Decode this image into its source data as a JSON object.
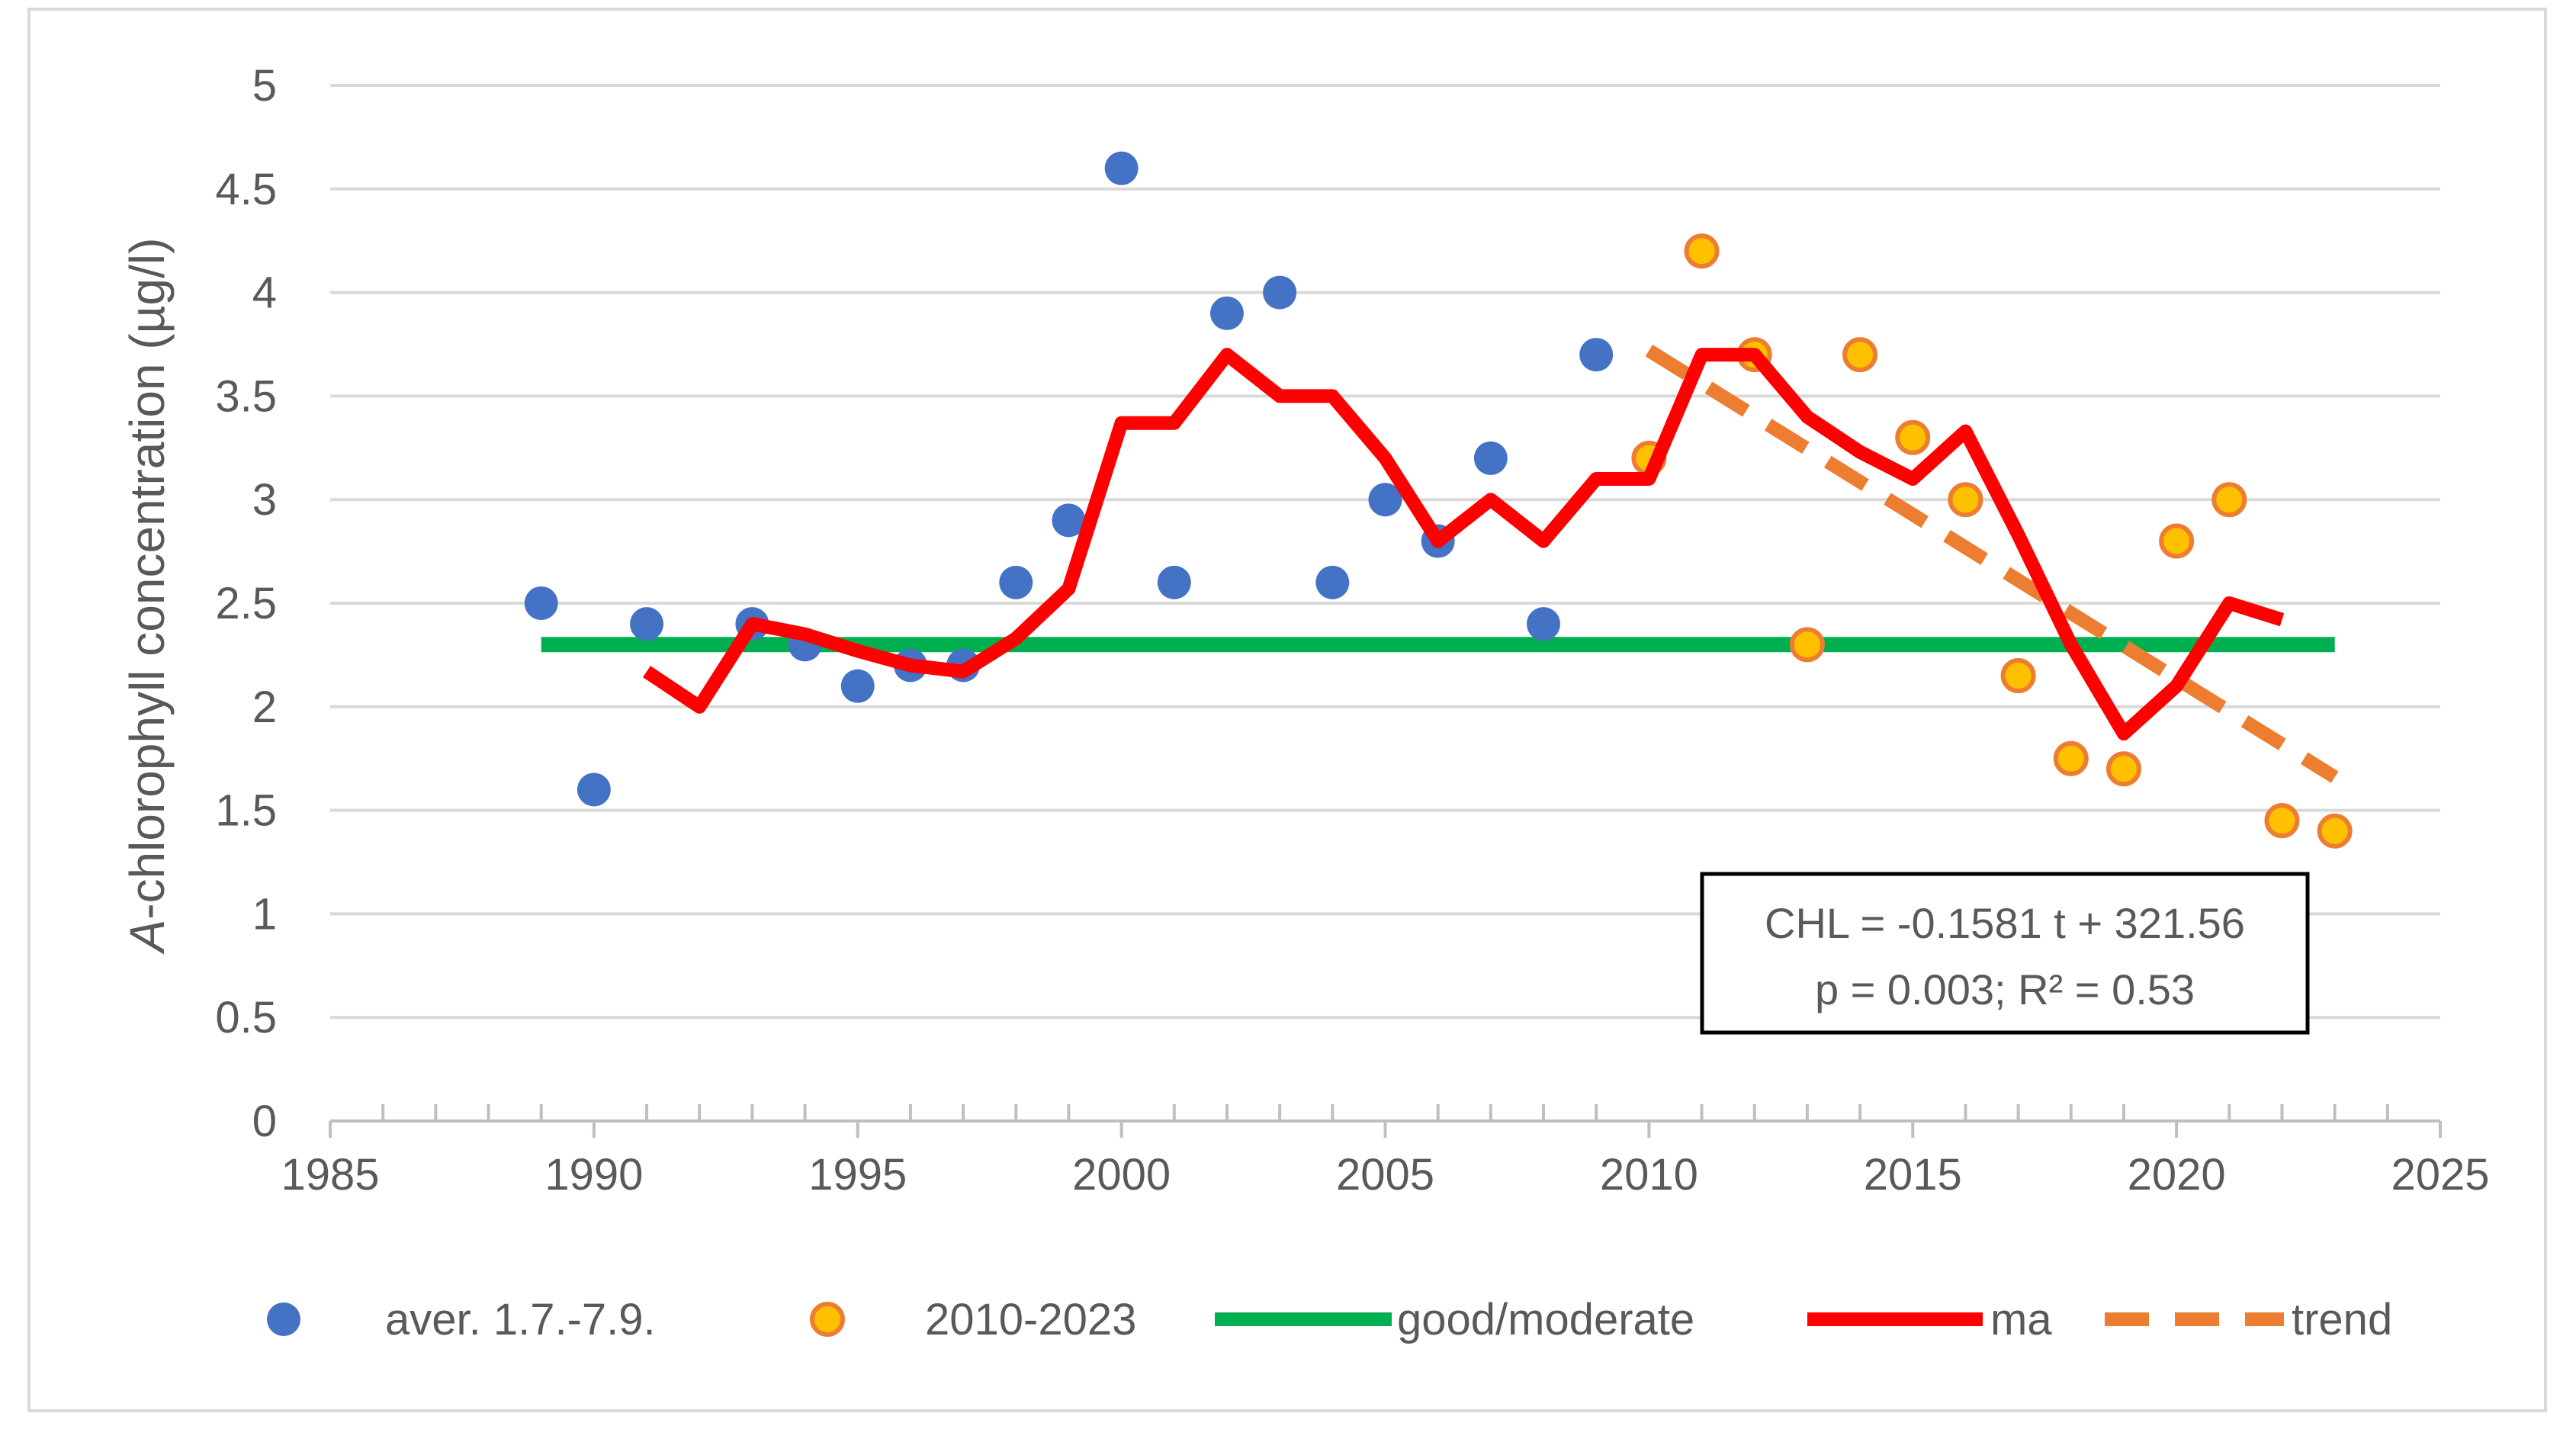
{
  "chart_data": {
    "type": "scatter",
    "title": "",
    "xlabel": "",
    "ylabel_prefix": "A",
    "ylabel": "-chlorophyll concentration (µg/l)",
    "xlim": [
      1985,
      2025
    ],
    "ylim": [
      0,
      5
    ],
    "x_ticks": [
      "1985",
      "1990",
      "1995",
      "2000",
      "2005",
      "2010",
      "2015",
      "2020",
      "2025"
    ],
    "y_ticks": [
      "0",
      "0.5",
      "1",
      "1.5",
      "2",
      "2.5",
      "3",
      "3.5",
      "4",
      "4.5",
      "5"
    ],
    "grid": "horizontal",
    "legend_position": "bottom",
    "colors": {
      "aver": "#4472c4",
      "recent_fill": "#ffc000",
      "recent_edge": "#ed7d31",
      "good_moderate": "#00b050",
      "ma": "#ff0000",
      "trend": "#ed7d31",
      "grid": "#d9d9d9",
      "axis": "#bfbfbf",
      "text": "#595959"
    },
    "series": [
      {
        "name": "aver. 1.7.-7.9.",
        "kind": "scatter",
        "x": [
          1989,
          1990,
          1991,
          1993,
          1994,
          1995,
          1996,
          1997,
          1998,
          1999,
          2000,
          2001,
          2002,
          2003,
          2004,
          2005,
          2006,
          2007,
          2008,
          2009
        ],
        "y": [
          2.5,
          1.6,
          2.4,
          2.4,
          2.3,
          2.1,
          2.2,
          2.2,
          2.6,
          2.9,
          4.6,
          2.6,
          3.9,
          4.0,
          2.6,
          3.0,
          2.8,
          3.2,
          2.4,
          3.7
        ]
      },
      {
        "name": "2010-2023",
        "kind": "scatter",
        "x": [
          2010,
          2011,
          2012,
          2013,
          2014,
          2015,
          2016,
          2017,
          2018,
          2019,
          2020,
          2021,
          2022,
          2023
        ],
        "y": [
          3.2,
          4.2,
          3.7,
          2.3,
          3.7,
          3.3,
          3.0,
          2.15,
          1.75,
          1.7,
          2.8,
          3.0,
          1.45,
          1.4
        ]
      },
      {
        "name": "good/moderate",
        "kind": "line",
        "x": [
          1989,
          2023
        ],
        "y": [
          2.3,
          2.3
        ]
      },
      {
        "name": "ma",
        "kind": "line",
        "x": [
          1991,
          1992,
          1993,
          1994,
          1995,
          1996,
          1997,
          1998,
          1999,
          2000,
          2001,
          2002,
          2003,
          2004,
          2005,
          2006,
          2007,
          2008,
          2009,
          2010,
          2011,
          2012,
          2013,
          2014,
          2015,
          2016,
          2017,
          2018,
          2019,
          2020,
          2021,
          2022
        ],
        "y": [
          2.17,
          2.0,
          2.4,
          2.35,
          2.27,
          2.2,
          2.17,
          2.33,
          2.57,
          3.37,
          3.37,
          3.7,
          3.5,
          3.5,
          3.2,
          2.8,
          3.0,
          2.8,
          3.1,
          3.1,
          3.7,
          3.7,
          3.4,
          3.23,
          3.1,
          3.33,
          2.83,
          2.3,
          1.87,
          2.1,
          2.5,
          2.42
        ]
      },
      {
        "name": "trend",
        "kind": "dashed-line",
        "x": [
          2010,
          2023
        ],
        "y": [
          3.72,
          1.66
        ]
      }
    ],
    "annotation": {
      "line1": "CHL = -0.1581 t + 321.56",
      "line2": "p = 0.003; R² = 0.53"
    }
  }
}
